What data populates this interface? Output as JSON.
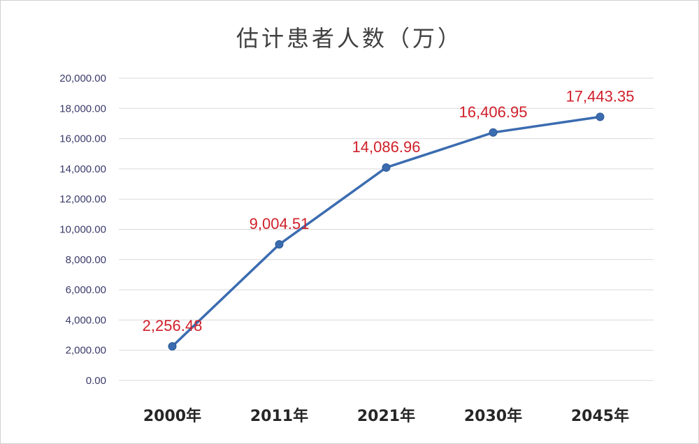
{
  "chart_data": {
    "type": "line",
    "title": "估计患者人数（万）",
    "categories": [
      "2000年",
      "2011年",
      "2021年",
      "2030年",
      "2045年"
    ],
    "values": [
      2256.48,
      9004.51,
      14086.96,
      16406.95,
      17443.35
    ],
    "data_labels": [
      "2,256.48",
      "9,004.51",
      "14,086.96",
      "16,406.95",
      "17,443.35"
    ],
    "yticks": [
      "0.00",
      "2,000.00",
      "4,000.00",
      "6,000.00",
      "8,000.00",
      "10,000.00",
      "12,000.00",
      "14,000.00",
      "16,000.00",
      "18,000.00",
      "20,000.00"
    ],
    "ylim": [
      0,
      20000
    ],
    "grid": true,
    "colors": {
      "line": "#3b6cb0",
      "marker": "#3b6cb0",
      "label": "#d0202a",
      "grid": "#d9d9d9"
    }
  }
}
